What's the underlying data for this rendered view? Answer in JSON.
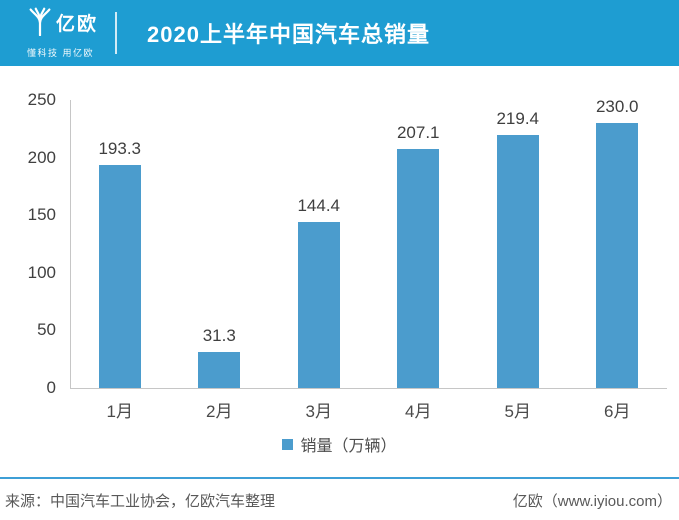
{
  "header": {
    "logo_text": "亿欧",
    "logo_tagline": "懂科技 用亿欧"
  },
  "chart_data": {
    "type": "bar",
    "title": "2020上半年中国汽车总销量",
    "categories": [
      "1月",
      "2月",
      "3月",
      "4月",
      "5月",
      "6月"
    ],
    "values": [
      193.3,
      31.3,
      144.4,
      207.1,
      219.4,
      230.0
    ],
    "value_labels": [
      "193.3",
      "31.3",
      "144.4",
      "207.1",
      "219.4",
      "230.0"
    ],
    "legend": "销量（万辆）",
    "xlabel": "",
    "ylabel": "",
    "ylim": [
      0,
      250
    ],
    "yticks": [
      0,
      50,
      100,
      150,
      200,
      250
    ],
    "grid": false,
    "legend_position": "bottom-center",
    "bar_color": "#4B9CCD"
  },
  "footer": {
    "source": "来源：中国汽车工业协会，亿欧汽车整理",
    "brand": "亿欧（www.iyiou.com）"
  },
  "colors": {
    "header_bg": "#1E9DD2",
    "bar": "#4B9CCD",
    "accent_line": "#3D9FD6",
    "axis_line": "#C6C6C6",
    "text_dark": "#404040"
  }
}
